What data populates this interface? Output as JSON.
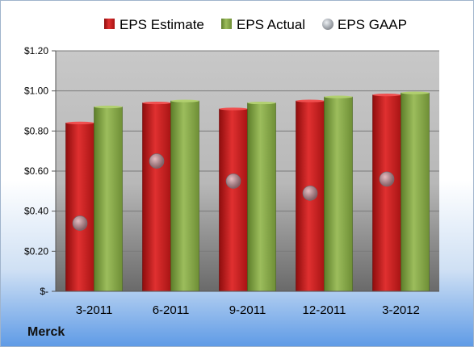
{
  "company": "Merck",
  "chart_data": {
    "type": "bar",
    "categories": [
      "3-2011",
      "6-2011",
      "9-2011",
      "12-2011",
      "3-2012"
    ],
    "series": [
      {
        "name": "EPS Estimate",
        "kind": "bar",
        "color": "#d42424",
        "values": [
          0.84,
          0.94,
          0.91,
          0.95,
          0.98
        ]
      },
      {
        "name": "EPS Actual",
        "kind": "bar",
        "color": "#8aad4c",
        "values": [
          0.92,
          0.95,
          0.94,
          0.97,
          0.99
        ]
      },
      {
        "name": "EPS GAAP",
        "kind": "marker",
        "color": "#a8aeb6",
        "values": [
          0.34,
          0.65,
          0.55,
          0.49,
          0.56
        ]
      }
    ],
    "ylim": [
      0,
      1.2
    ],
    "yticks": [
      0,
      0.2,
      0.4,
      0.6,
      0.8,
      1.0,
      1.2
    ],
    "ytick_labels": [
      "$-",
      "$0.20",
      "$0.40",
      "$0.60",
      "$0.80",
      "$1.00",
      "$1.20"
    ],
    "grid": true,
    "legend_position": "top"
  }
}
